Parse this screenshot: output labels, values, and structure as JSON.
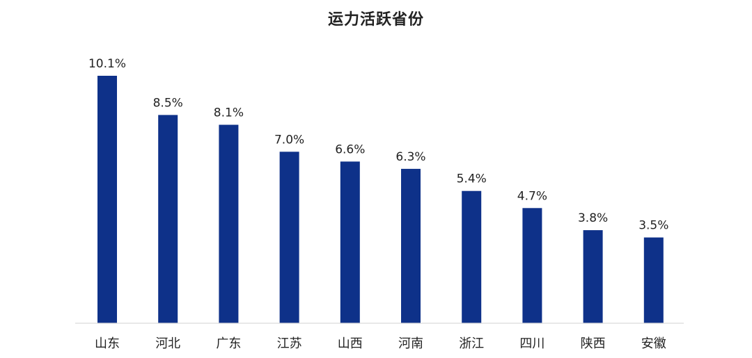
{
  "chart_data": {
    "type": "bar",
    "title": "运力活跃省份",
    "categories": [
      "山东",
      "河北",
      "广东",
      "江苏",
      "山西",
      "河南",
      "浙江",
      "四川",
      "陕西",
      "安徽"
    ],
    "values": [
      10.1,
      8.5,
      8.1,
      7.0,
      6.6,
      6.3,
      5.4,
      4.7,
      3.8,
      3.5
    ],
    "value_labels": [
      "10.1%",
      "8.5%",
      "8.1%",
      "7.0%",
      "6.6%",
      "6.3%",
      "5.4%",
      "4.7%",
      "3.8%",
      "3.5%"
    ],
    "unit": "%",
    "xlabel": "",
    "ylabel": "",
    "ylim": [
      0,
      10.1
    ],
    "grid": false,
    "legend": "none",
    "bar_color": "#0e3189",
    "axis_color": "#d9d9d9"
  }
}
